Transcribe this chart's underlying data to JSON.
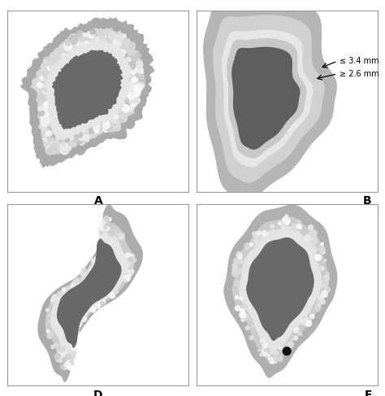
{
  "background_color": "#ffffff",
  "label_A": "A",
  "label_B": "B",
  "label_D": "D",
  "label_F": "F",
  "label_fontsize": 10,
  "annotation_upper": "≤ 3.4 mm",
  "annotation_lower": "≥ 2.6 mm",
  "annotation_fontsize": 7,
  "col_outer_shadow": "#a0a0a0",
  "col_outer_gray": "#b8b8b8",
  "col_wall_light": "#d2d2d2",
  "col_wall_white": "#e8e8e8",
  "col_lumen": "#686868",
  "col_lumen_dark": "#606060",
  "col_stone": "#111111",
  "col_border": "#999999"
}
